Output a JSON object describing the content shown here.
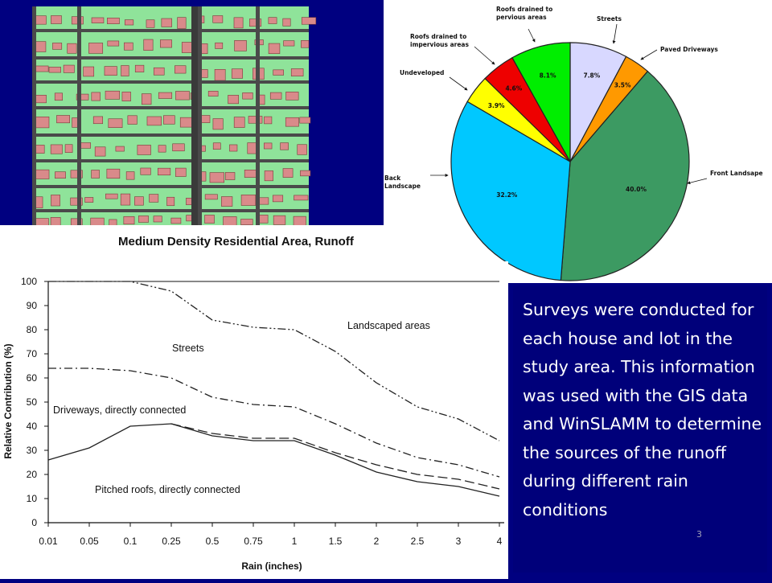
{
  "map": {
    "caption": "Medium Density Residential Area, Runoff",
    "colors": {
      "background": "#8fe39a",
      "road": "#4a4a4a",
      "roof": "#d98a8a"
    }
  },
  "text_box": {
    "text": "Surveys were conducted for each house and lot in the study area. This information was used with the GIS data and WinSLAMM to determine the sources of the runoff during different rain conditions"
  },
  "slide_number": "3",
  "chart_data": [
    {
      "type": "pie",
      "title": "",
      "slices": [
        {
          "label": "Streets",
          "label_lines": [
            "Streets"
          ],
          "value": 7.8,
          "display": "7.8%",
          "color": "#d8d8ff"
        },
        {
          "label": "Paved Driveways",
          "label_lines": [
            "Paved Driveways"
          ],
          "value": 3.5,
          "display": "3.5%",
          "color": "#ff9900"
        },
        {
          "label": "Front Landsape",
          "label_lines": [
            "Front Landsape"
          ],
          "value": 40.0,
          "display": "40.0%",
          "color": "#3c9a62"
        },
        {
          "label": "Back Landscape",
          "label_lines": [
            "Back",
            "Landscape"
          ],
          "value": 32.2,
          "display": "32.2%",
          "color": "#00c8ff"
        },
        {
          "label": "Undeveloped",
          "label_lines": [
            "Undeveloped"
          ],
          "value": 3.9,
          "display": "3.9%",
          "color": "#ffff00"
        },
        {
          "label": "Roofs drained to impervious areas",
          "label_lines": [
            "Roofs drained to",
            "impervious areas"
          ],
          "value": 4.6,
          "display": "4.6%",
          "color": "#ee0000"
        },
        {
          "label": "Roofs drained to pervious areas",
          "label_lines": [
            "Roofs drained to",
            "pervious areas"
          ],
          "value": 8.1,
          "display": "8.1%",
          "color": "#00ee00"
        }
      ]
    },
    {
      "type": "line",
      "xlabel": "Rain (inches)",
      "ylabel": "Relative Contribution (%)",
      "x": [
        "0.01",
        "0.05",
        "0.1",
        "0.25",
        "0.5",
        "0.75",
        "1",
        "1.5",
        "2",
        "2.5",
        "3",
        "4"
      ],
      "yticks": [
        0,
        10,
        20,
        30,
        40,
        50,
        60,
        70,
        80,
        90,
        100
      ],
      "ylim": [
        0,
        100
      ],
      "grid": false,
      "annotations": [
        "Landscaped areas",
        "Streets",
        "Driveways, directly connected",
        "Pitched roofs, directly connected"
      ],
      "series": [
        {
          "style": "dash-dot-dot",
          "values": [
            100,
            100,
            100,
            96,
            84,
            81,
            80,
            71,
            58,
            48,
            43,
            34
          ]
        },
        {
          "style": "dash-dot",
          "values": [
            64,
            64,
            63,
            60,
            52,
            49,
            48,
            41,
            33,
            27,
            24,
            19
          ]
        },
        {
          "style": "long-dash",
          "values": [
            null,
            null,
            null,
            41,
            37,
            35,
            35,
            29,
            24,
            20,
            18,
            14
          ]
        },
        {
          "style": "solid",
          "values": [
            26,
            31,
            40,
            41,
            36,
            34,
            34,
            28,
            21,
            17,
            15,
            11
          ]
        }
      ]
    }
  ]
}
